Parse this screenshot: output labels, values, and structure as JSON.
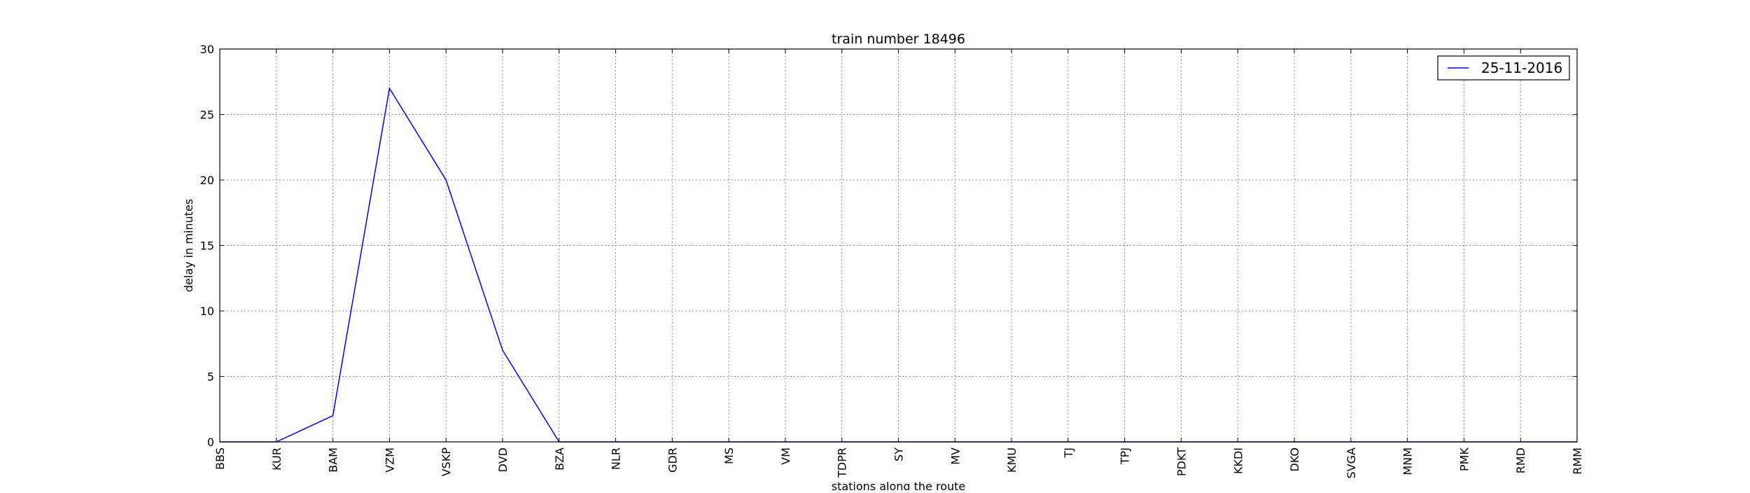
{
  "chart_data": {
    "type": "line",
    "title": "train number 18496",
    "xlabel": "stations along the route",
    "ylabel": "delay in minutes",
    "categories": [
      "BBS",
      "KUR",
      "BAM",
      "VZM",
      "VSKP",
      "DVD",
      "BZA",
      "NLR",
      "GDR",
      "MS",
      "VM",
      "TDPR",
      "SY",
      "MV",
      "KMU",
      "TJ",
      "TPJ",
      "PDKT",
      "KKDI",
      "DKO",
      "SVGA",
      "MNM",
      "PMK",
      "RMD",
      "RMM"
    ],
    "series": [
      {
        "name": "25-11-2016",
        "values": [
          0,
          0,
          2,
          27,
          20,
          7,
          0,
          0,
          0,
          0,
          0,
          0,
          0,
          0,
          0,
          0,
          0,
          0,
          0,
          0,
          0,
          0,
          0,
          0,
          0
        ],
        "color": "#0000ff"
      }
    ],
    "ylim": [
      0,
      30
    ],
    "yticks": [
      0,
      5,
      10,
      15,
      20,
      25,
      30
    ],
    "grid": true,
    "legend_position": "top-right"
  }
}
